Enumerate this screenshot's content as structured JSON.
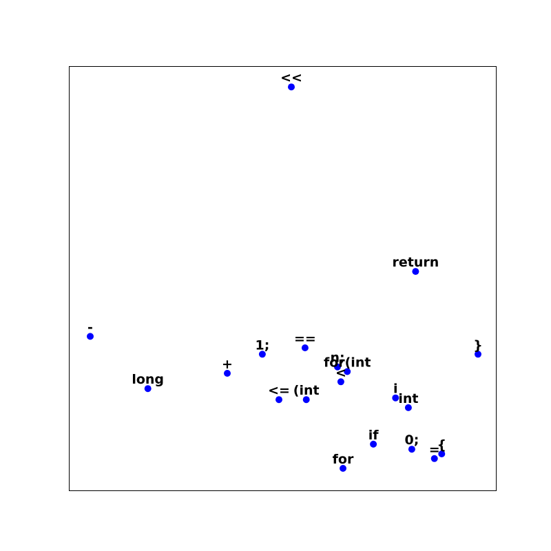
{
  "chart_data": {
    "type": "scatter",
    "title": "",
    "xlabel": "",
    "ylabel": "",
    "xlim": [
      0,
      100
    ],
    "ylim": [
      0,
      100
    ],
    "grid": false,
    "legend": "none",
    "axis_ticks": false,
    "point_color": "#0000ff",
    "points": [
      {
        "label": "<<",
        "x": 52.1,
        "y": 95.1
      },
      {
        "label": "return",
        "x": 81.2,
        "y": 51.6
      },
      {
        "label": "-",
        "x": 5.0,
        "y": 36.3
      },
      {
        "label": "}",
        "x": 95.8,
        "y": 32.1
      },
      {
        "label": "==",
        "x": 55.3,
        "y": 33.6
      },
      {
        "label": "1;",
        "x": 45.3,
        "y": 32.1
      },
      {
        "label": "n;",
        "x": 62.9,
        "y": 29.1
      },
      {
        "label": "for(int",
        "x": 65.2,
        "y": 28.0
      },
      {
        "label": "+",
        "x": 37.1,
        "y": 27.6
      },
      {
        "label": "<",
        "x": 63.7,
        "y": 25.6
      },
      {
        "label": "long",
        "x": 18.5,
        "y": 24.0
      },
      {
        "label": "i",
        "x": 76.5,
        "y": 21.8
      },
      {
        "label": "int",
        "x": 79.5,
        "y": 19.5
      },
      {
        "label": "<=",
        "x": 49.2,
        "y": 21.4
      },
      {
        "label": "(int",
        "x": 55.6,
        "y": 21.4
      },
      {
        "label": "if",
        "x": 71.3,
        "y": 10.9
      },
      {
        "label": "0;",
        "x": 80.3,
        "y": 9.7
      },
      {
        "label": "{",
        "x": 87.3,
        "y": 8.6
      },
      {
        "label": "=",
        "x": 85.6,
        "y": 7.5
      },
      {
        "label": "for",
        "x": 64.2,
        "y": 5.2
      }
    ]
  }
}
